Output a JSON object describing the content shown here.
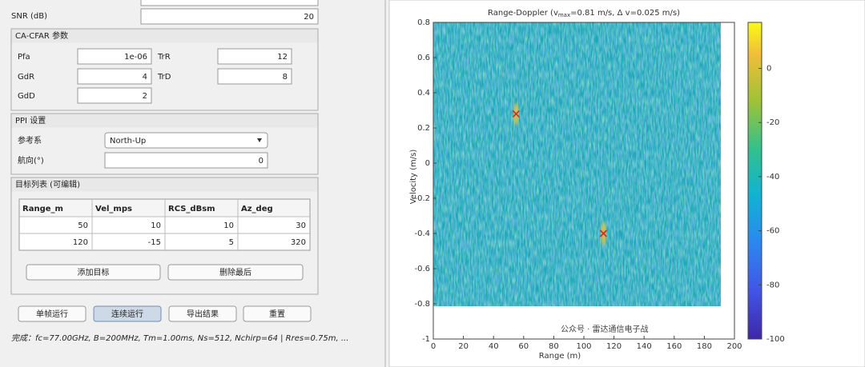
{
  "form": {
    "snr_label": "SNR (dB)",
    "snr_value": "20"
  },
  "cfar": {
    "title": "CA-CFAR 参数",
    "fields": [
      {
        "label": "Pfa",
        "value": "1e-06"
      },
      {
        "label": "TrR",
        "value": "12"
      },
      {
        "label": "GdR",
        "value": "4"
      },
      {
        "label": "TrD",
        "value": "8"
      },
      {
        "label": "GdD",
        "value": "2"
      }
    ]
  },
  "ppi": {
    "title": "PPI 设置",
    "frame_label": "参考系",
    "frame_value": "North-Up",
    "heading_label": "航向(°)",
    "heading_value": "0"
  },
  "targets_table": {
    "title": "目标列表 (可编辑)",
    "columns": [
      "Range_m",
      "Vel_mps",
      "RCS_dBsm",
      "Az_deg"
    ],
    "rows": [
      [
        50,
        10,
        10,
        30
      ],
      [
        120,
        -15,
        5,
        320
      ]
    ],
    "buttons": [
      "添加目标",
      "删除最后"
    ]
  },
  "buttons": [
    "单帧运行",
    "连续运行",
    "导出结果",
    "重置"
  ],
  "status": "完成：fc=77.00GHz, B=200MHz, Tm=1.00ms, Ns=512, Nchirp=64 | Rres=0.75m, ...",
  "watermark": "公众号 · 雷达通信电子战",
  "chart_data": {
    "type": "heatmap",
    "title_parts": [
      "Range-Doppler   (v",
      "max",
      "=0.81  m/s,  Δ  v=0.025  m/s)"
    ],
    "x_label": "Range (m)",
    "y_label": "Velocity (m/s)",
    "xlim": [
      0,
      200
    ],
    "xticks": [
      0,
      20,
      40,
      60,
      80,
      100,
      120,
      140,
      160,
      180,
      200
    ],
    "ylim": [
      -1,
      0.8
    ],
    "yticks": [
      -1,
      -0.8,
      -0.6,
      -0.4,
      -0.2,
      0,
      0.2,
      0.4,
      0.6,
      0.8
    ],
    "colorbar": {
      "lim": [
        -100,
        17
      ],
      "ticks": [
        -100,
        -80,
        -60,
        -40,
        -20,
        0
      ]
    },
    "detections": {
      "x": [
        55,
        113
      ],
      "y": [
        0.28,
        -0.4
      ]
    },
    "marker_color": "#d62728"
  }
}
